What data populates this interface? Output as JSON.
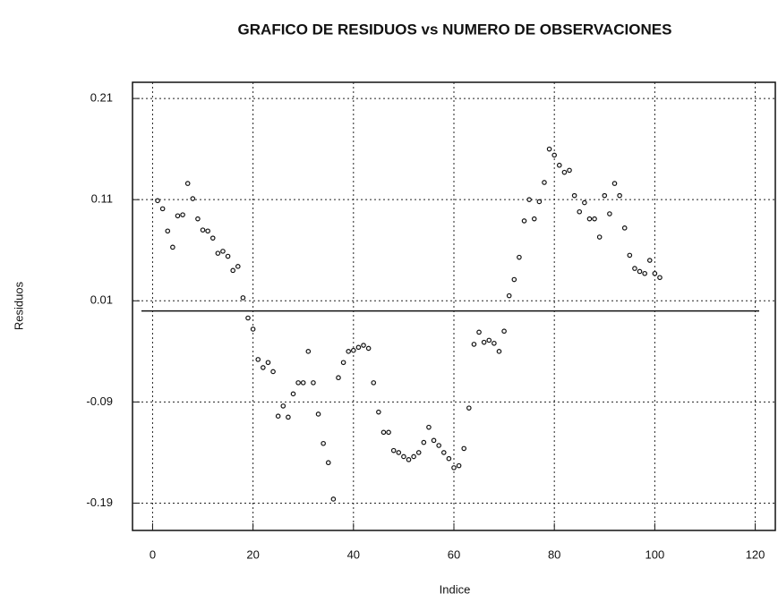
{
  "chart_data": {
    "type": "scatter",
    "title": "GRAFICO DE RESIDUOS vs NUMERO DE OBSERVACIONES",
    "x_label": "Indice",
    "y_label": "Residuos",
    "x": [
      1,
      2,
      3,
      4,
      5,
      6,
      7,
      8,
      9,
      10,
      11,
      12,
      13,
      14,
      15,
      16,
      17,
      18,
      19,
      20,
      21,
      22,
      23,
      24,
      25,
      26,
      27,
      28,
      29,
      30,
      31,
      32,
      33,
      34,
      35,
      36,
      37,
      38,
      39,
      40,
      41,
      42,
      43,
      44,
      45,
      46,
      47,
      48,
      49,
      50,
      51,
      52,
      53,
      54,
      55,
      56,
      57,
      58,
      59,
      60,
      61,
      62,
      63,
      64,
      65,
      66,
      67,
      68,
      69,
      70,
      71,
      72,
      73,
      74,
      75,
      76,
      77,
      78,
      79,
      80,
      81,
      82,
      83,
      84,
      85,
      86,
      87,
      88,
      89,
      90,
      91,
      92,
      93,
      94,
      95,
      96,
      97,
      98,
      99,
      100,
      101
    ],
    "values": [
      0.109,
      0.101,
      0.079,
      0.063,
      0.094,
      0.095,
      0.126,
      0.111,
      0.091,
      0.08,
      0.079,
      0.072,
      0.057,
      0.059,
      0.054,
      0.04,
      0.044,
      0.013,
      -0.007,
      -0.018,
      -0.048,
      -0.056,
      -0.051,
      -0.06,
      -0.104,
      -0.094,
      -0.105,
      -0.082,
      -0.071,
      -0.071,
      -0.04,
      -0.071,
      -0.102,
      -0.131,
      -0.15,
      -0.186,
      -0.066,
      -0.051,
      -0.04,
      -0.039,
      -0.036,
      -0.034,
      -0.037,
      -0.071,
      -0.1,
      -0.12,
      -0.12,
      -0.138,
      -0.14,
      -0.144,
      -0.147,
      -0.144,
      -0.14,
      -0.13,
      -0.115,
      -0.128,
      -0.133,
      -0.14,
      -0.146,
      -0.155,
      -0.153,
      -0.136,
      -0.096,
      -0.033,
      -0.021,
      -0.031,
      -0.029,
      -0.032,
      -0.04,
      -0.02,
      0.015,
      0.031,
      0.053,
      0.089,
      0.11,
      0.091,
      0.108,
      0.127,
      0.16,
      0.154,
      0.144,
      0.137,
      0.139,
      0.114,
      0.098,
      0.107,
      0.091,
      0.091,
      0.073,
      0.114,
      0.096,
      0.126,
      0.114,
      0.082,
      0.055,
      0.042,
      0.039,
      0.037,
      0.05,
      0.037,
      0.033
    ],
    "color": "#111111",
    "xlim": [
      -4,
      124
    ],
    "ylim": [
      -0.217,
      0.226
    ],
    "xticks": [
      0,
      20,
      40,
      60,
      80,
      100,
      120
    ],
    "yticks": [
      0.21,
      0.11,
      0.01,
      -0.09,
      -0.19
    ],
    "hline": 0,
    "grid": true
  }
}
